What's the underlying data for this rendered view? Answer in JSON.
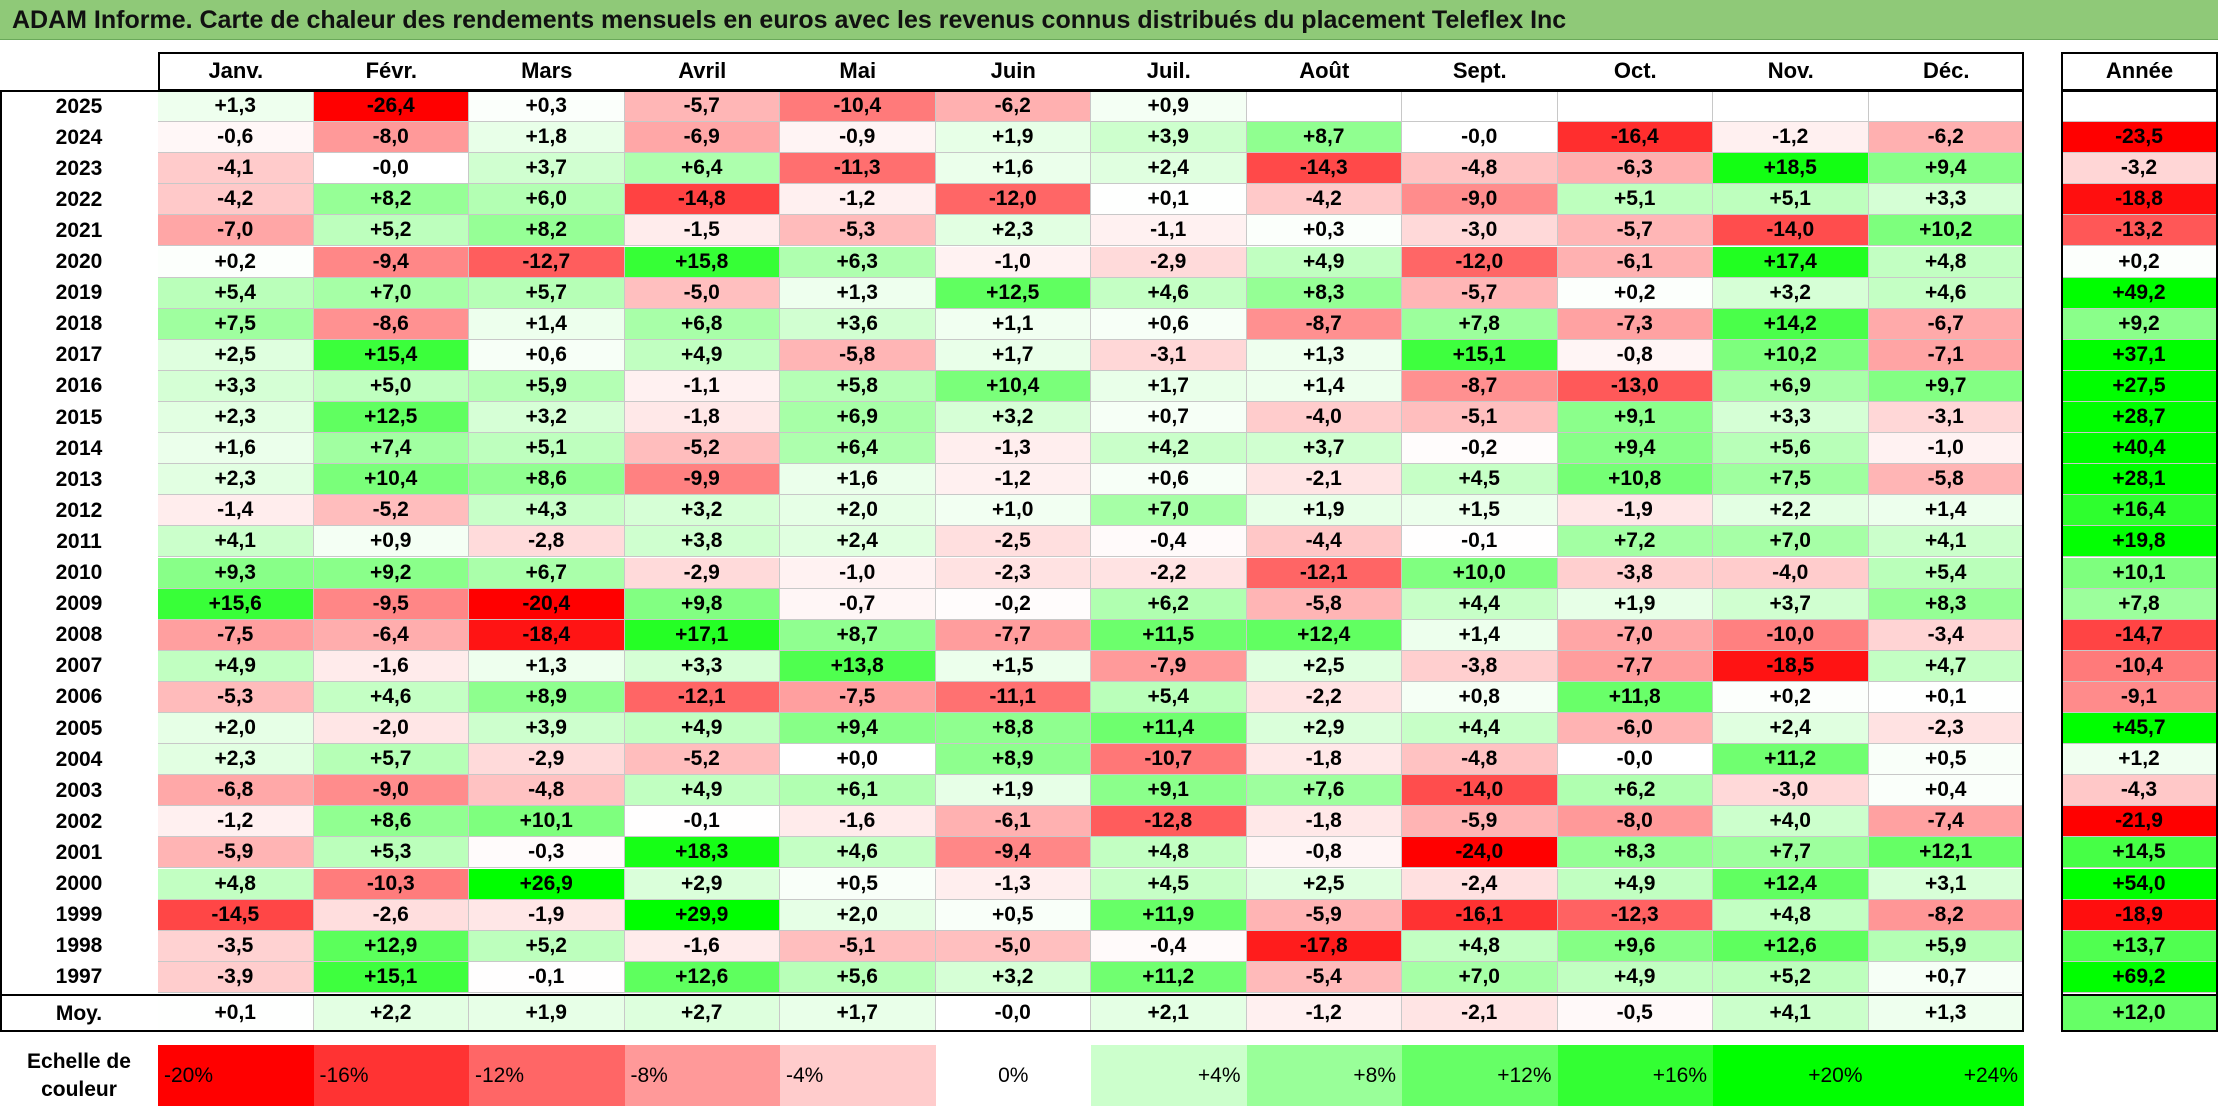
{
  "title": "ADAM Informe. Carte de chaleur des rendements mensuels en euros avec les revenus connus distribués du placement Teleflex Inc",
  "chart_data": {
    "type": "heatmap",
    "title": "ADAM Informe. Carte de chaleur des rendements mensuels en euros avec les revenus connus distribués du placement Teleflex Inc",
    "months": [
      "Janv.",
      "Févr.",
      "Mars",
      "Avril",
      "Mai",
      "Juin",
      "Juil.",
      "Août",
      "Sept.",
      "Oct.",
      "Nov.",
      "Déc."
    ],
    "annual_header": "Année",
    "rows": [
      {
        "year": "2025",
        "values": [
          "+1,3",
          "-26,4",
          "+0,3",
          "-5,7",
          "-10,4",
          "-6,2",
          "+0,9",
          "",
          "",
          "",
          "",
          ""
        ],
        "annual": ""
      },
      {
        "year": "2024",
        "values": [
          "-0,6",
          "-8,0",
          "+1,8",
          "-6,9",
          "-0,9",
          "+1,9",
          "+3,9",
          "+8,7",
          "-0,0",
          "-16,4",
          "-1,2",
          "-6,2"
        ],
        "annual": "-23,5"
      },
      {
        "year": "2023",
        "values": [
          "-4,1",
          "-0,0",
          "+3,7",
          "+6,4",
          "-11,3",
          "+1,6",
          "+2,4",
          "-14,3",
          "-4,8",
          "-6,3",
          "+18,5",
          "+9,4"
        ],
        "annual": "-3,2"
      },
      {
        "year": "2022",
        "values": [
          "-4,2",
          "+8,2",
          "+6,0",
          "-14,8",
          "-1,2",
          "-12,0",
          "+0,1",
          "-4,2",
          "-9,0",
          "+5,1",
          "+5,1",
          "+3,3"
        ],
        "annual": "-18,8"
      },
      {
        "year": "2021",
        "values": [
          "-7,0",
          "+5,2",
          "+8,2",
          "-1,5",
          "-5,3",
          "+2,3",
          "-1,1",
          "+0,3",
          "-3,0",
          "-5,7",
          "-14,0",
          "+10,2"
        ],
        "annual": "-13,2"
      },
      {
        "year": "2020",
        "values": [
          "+0,2",
          "-9,4",
          "-12,7",
          "+15,8",
          "+6,3",
          "-1,0",
          "-2,9",
          "+4,9",
          "-12,0",
          "-6,1",
          "+17,4",
          "+4,8"
        ],
        "annual": "+0,2"
      },
      {
        "year": "2019",
        "values": [
          "+5,4",
          "+7,0",
          "+5,7",
          "-5,0",
          "+1,3",
          "+12,5",
          "+4,6",
          "+8,3",
          "-5,7",
          "+0,2",
          "+3,2",
          "+4,6"
        ],
        "annual": "+49,2"
      },
      {
        "year": "2018",
        "values": [
          "+7,5",
          "-8,6",
          "+1,4",
          "+6,8",
          "+3,6",
          "+1,1",
          "+0,6",
          "-8,7",
          "+7,8",
          "-7,3",
          "+14,2",
          "-6,7"
        ],
        "annual": "+9,2"
      },
      {
        "year": "2017",
        "values": [
          "+2,5",
          "+15,4",
          "+0,6",
          "+4,9",
          "-5,8",
          "+1,7",
          "-3,1",
          "+1,3",
          "+15,1",
          "-0,8",
          "+10,2",
          "-7,1"
        ],
        "annual": "+37,1"
      },
      {
        "year": "2016",
        "values": [
          "+3,3",
          "+5,0",
          "+5,9",
          "-1,1",
          "+5,8",
          "+10,4",
          "+1,7",
          "+1,4",
          "-8,7",
          "-13,0",
          "+6,9",
          "+9,7"
        ],
        "annual": "+27,5"
      },
      {
        "year": "2015",
        "values": [
          "+2,3",
          "+12,5",
          "+3,2",
          "-1,8",
          "+6,9",
          "+3,2",
          "+0,7",
          "-4,0",
          "-5,1",
          "+9,1",
          "+3,3",
          "-3,1"
        ],
        "annual": "+28,7"
      },
      {
        "year": "2014",
        "values": [
          "+1,6",
          "+7,4",
          "+5,1",
          "-5,2",
          "+6,4",
          "-1,3",
          "+4,2",
          "+3,7",
          "-0,2",
          "+9,4",
          "+5,6",
          "-1,0"
        ],
        "annual": "+40,4"
      },
      {
        "year": "2013",
        "values": [
          "+2,3",
          "+10,4",
          "+8,6",
          "-9,9",
          "+1,6",
          "-1,2",
          "+0,6",
          "-2,1",
          "+4,5",
          "+10,8",
          "+7,5",
          "-5,8"
        ],
        "annual": "+28,1"
      },
      {
        "year": "2012",
        "values": [
          "-1,4",
          "-5,2",
          "+4,3",
          "+3,2",
          "+2,0",
          "+1,0",
          "+7,0",
          "+1,9",
          "+1,5",
          "-1,9",
          "+2,2",
          "+1,4"
        ],
        "annual": "+16,4"
      },
      {
        "year": "2011",
        "values": [
          "+4,1",
          "+0,9",
          "-2,8",
          "+3,8",
          "+2,4",
          "-2,5",
          "-0,4",
          "-4,4",
          "-0,1",
          "+7,2",
          "+7,0",
          "+4,1"
        ],
        "annual": "+19,8"
      },
      {
        "year": "2010",
        "values": [
          "+9,3",
          "+9,2",
          "+6,7",
          "-2,9",
          "-1,0",
          "-2,3",
          "-2,2",
          "-12,1",
          "+10,0",
          "-3,8",
          "-4,0",
          "+5,4"
        ],
        "annual": "+10,1"
      },
      {
        "year": "2009",
        "values": [
          "+15,6",
          "-9,5",
          "-20,4",
          "+9,8",
          "-0,7",
          "-0,2",
          "+6,2",
          "-5,8",
          "+4,4",
          "+1,9",
          "+3,7",
          "+8,3"
        ],
        "annual": "+7,8"
      },
      {
        "year": "2008",
        "values": [
          "-7,5",
          "-6,4",
          "-18,4",
          "+17,1",
          "+8,7",
          "-7,7",
          "+11,5",
          "+12,4",
          "+1,4",
          "-7,0",
          "-10,0",
          "-3,4"
        ],
        "annual": "-14,7"
      },
      {
        "year": "2007",
        "values": [
          "+4,9",
          "-1,6",
          "+1,3",
          "+3,3",
          "+13,8",
          "+1,5",
          "-7,9",
          "+2,5",
          "-3,8",
          "-7,7",
          "-18,5",
          "+4,7"
        ],
        "annual": "-10,4"
      },
      {
        "year": "2006",
        "values": [
          "-5,3",
          "+4,6",
          "+8,9",
          "-12,1",
          "-7,5",
          "-11,1",
          "+5,4",
          "-2,2",
          "+0,8",
          "+11,8",
          "+0,2",
          "+0,1"
        ],
        "annual": "-9,1"
      },
      {
        "year": "2005",
        "values": [
          "+2,0",
          "-2,0",
          "+3,9",
          "+4,9",
          "+9,4",
          "+8,8",
          "+11,4",
          "+2,9",
          "+4,4",
          "-6,0",
          "+2,4",
          "-2,3"
        ],
        "annual": "+45,7"
      },
      {
        "year": "2004",
        "values": [
          "+2,3",
          "+5,7",
          "-2,9",
          "-5,2",
          "+0,0",
          "+8,9",
          "-10,7",
          "-1,8",
          "-4,8",
          "-0,0",
          "+11,2",
          "+0,5"
        ],
        "annual": "+1,2"
      },
      {
        "year": "2003",
        "values": [
          "-6,8",
          "-9,0",
          "-4,8",
          "+4,9",
          "+6,1",
          "+1,9",
          "+9,1",
          "+7,6",
          "-14,0",
          "+6,2",
          "-3,0",
          "+0,4"
        ],
        "annual": "-4,3"
      },
      {
        "year": "2002",
        "values": [
          "-1,2",
          "+8,6",
          "+10,1",
          "-0,1",
          "-1,6",
          "-6,1",
          "-12,8",
          "-1,8",
          "-5,9",
          "-8,0",
          "+4,0",
          "-7,4"
        ],
        "annual": "-21,9"
      },
      {
        "year": "2001",
        "values": [
          "-5,9",
          "+5,3",
          "-0,3",
          "+18,3",
          "+4,6",
          "-9,4",
          "+4,8",
          "-0,8",
          "-24,0",
          "+8,3",
          "+7,7",
          "+12,1"
        ],
        "annual": "+14,5"
      },
      {
        "year": "2000",
        "values": [
          "+4,8",
          "-10,3",
          "+26,9",
          "+2,9",
          "+0,5",
          "-1,3",
          "+4,5",
          "+2,5",
          "-2,4",
          "+4,9",
          "+12,4",
          "+3,1"
        ],
        "annual": "+54,0"
      },
      {
        "year": "1999",
        "values": [
          "-14,5",
          "-2,6",
          "-1,9",
          "+29,9",
          "+2,0",
          "+0,5",
          "+11,9",
          "-5,9",
          "-16,1",
          "-12,3",
          "+4,8",
          "-8,2"
        ],
        "annual": "-18,9"
      },
      {
        "year": "1998",
        "values": [
          "-3,5",
          "+12,9",
          "+5,2",
          "-1,6",
          "-5,1",
          "-5,0",
          "-0,4",
          "-17,8",
          "+4,8",
          "+9,6",
          "+12,6",
          "+5,9"
        ],
        "annual": "+13,7"
      },
      {
        "year": "1997",
        "values": [
          "-3,9",
          "+15,1",
          "-0,1",
          "+12,6",
          "+5,6",
          "+3,2",
          "+11,2",
          "-5,4",
          "+7,0",
          "+4,9",
          "+5,2",
          "+0,7"
        ],
        "annual": "+69,2"
      }
    ],
    "average": {
      "label": "Moy.",
      "values": [
        "+0,1",
        "+2,2",
        "+1,9",
        "+2,7",
        "+1,7",
        "-0,0",
        "+2,1",
        "-1,2",
        "-2,1",
        "-0,5",
        "+4,1",
        "+1,3"
      ],
      "annual": "+12,0"
    },
    "color_scale": {
      "label_line1": "Echelle de",
      "label_line2": "couleur",
      "stops": [
        "-20%",
        "-16%",
        "-12%",
        "-8%",
        "-4%",
        "0%",
        "+4%",
        "+8%",
        "+12%",
        "+16%",
        "+20%",
        "+24%"
      ],
      "negative_color": "#ff0000",
      "neutral_color": "#ffffff",
      "positive_color": "#00ff00"
    }
  }
}
